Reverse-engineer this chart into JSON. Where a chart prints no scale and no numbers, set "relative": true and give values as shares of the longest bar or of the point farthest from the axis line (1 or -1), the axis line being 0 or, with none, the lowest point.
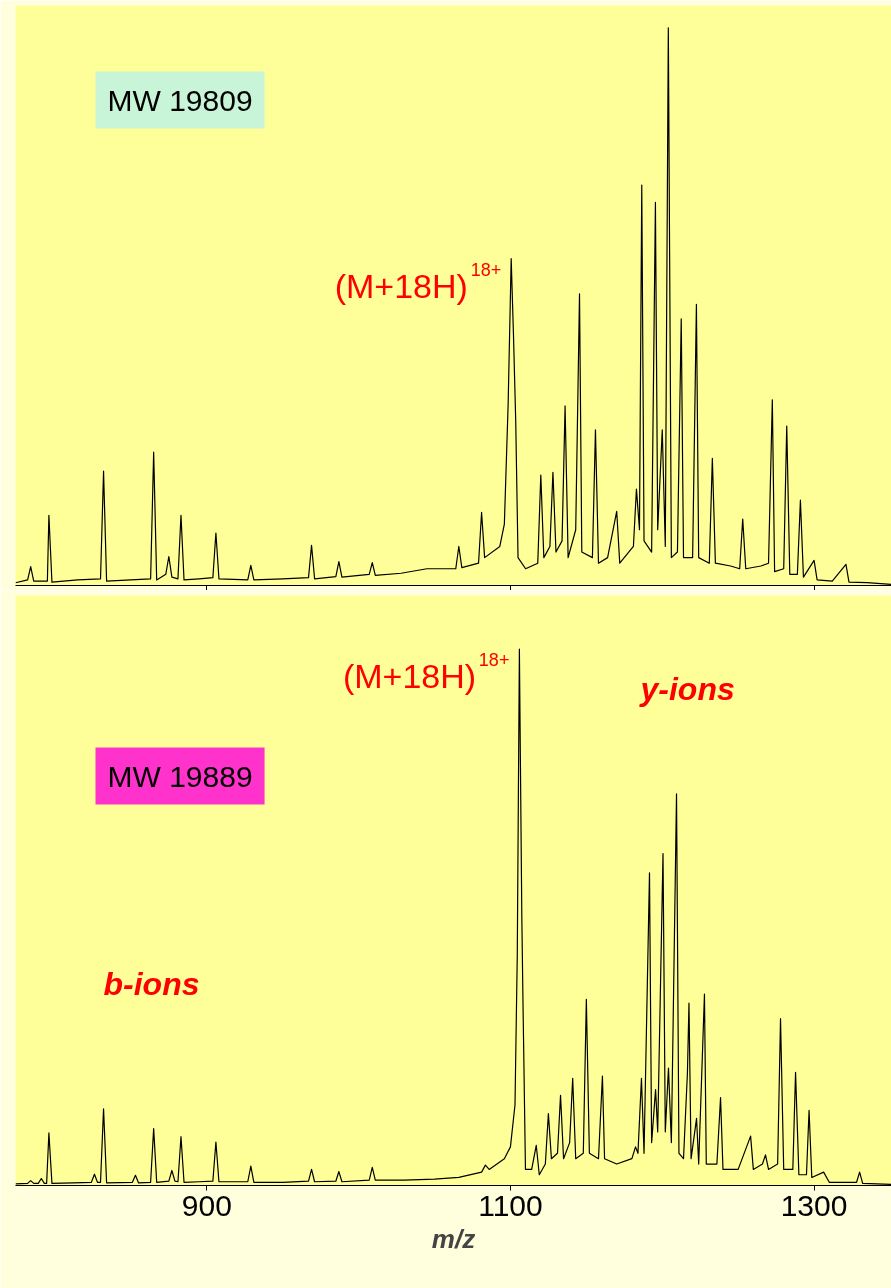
{
  "chart_data": [
    {
      "type": "line",
      "relative": true,
      "xlim": [
        774,
        1351
      ],
      "xticks": [
        900,
        1100,
        1300
      ],
      "tick_labels": false,
      "annotations": [
        "MW 19809",
        {
          "text": "(M+18H)$^{18+}$",
          "x": 1100.5,
          "y": 0.586
        }
      ],
      "series": [
        {
          "color": "#000000",
          "x": [
            774,
            782,
            784,
            786,
            795,
            796,
            798,
            815,
            830,
            832,
            834,
            850,
            863,
            865,
            867,
            873,
            875,
            877,
            881,
            883,
            885,
            895,
            904,
            906,
            908,
            927,
            929,
            931,
            950,
            967,
            969,
            971,
            985,
            987,
            989,
            1007,
            1009,
            1011,
            1028,
            1045,
            1064,
            1066,
            1068,
            1079,
            1081,
            1083,
            1093,
            1096,
            1098.5,
            1100.5,
            1102,
            1103.5,
            1105,
            1110,
            1118,
            1120,
            1122,
            1126,
            1128,
            1130,
            1134,
            1136,
            1138,
            1143,
            1145.5,
            1147,
            1154,
            1156,
            1158,
            1164,
            1170,
            1172,
            1181,
            1183,
            1185,
            1186.5,
            1188,
            1193,
            1195.5,
            1197,
            1200,
            1202,
            1204,
            1206,
            1210,
            1212.5,
            1214,
            1220,
            1222.5,
            1224,
            1231,
            1233,
            1235,
            1245,
            1251,
            1253,
            1255,
            1265,
            1270,
            1272.5,
            1274,
            1280,
            1282,
            1284,
            1289,
            1291,
            1293,
            1300,
            1302,
            1312,
            1321,
            1323,
            1335,
            1351
          ],
          "values": [
            0.005,
            0.01,
            0.034,
            0.008,
            0.008,
            0.126,
            0.006,
            0.01,
            0.012,
            0.205,
            0.008,
            0.01,
            0.012,
            0.239,
            0.01,
            0.02,
            0.052,
            0.015,
            0.012,
            0.126,
            0.01,
            0.012,
            0.014,
            0.094,
            0.012,
            0.01,
            0.036,
            0.01,
            0.012,
            0.014,
            0.072,
            0.012,
            0.016,
            0.043,
            0.015,
            0.02,
            0.041,
            0.018,
            0.022,
            0.03,
            0.03,
            0.07,
            0.032,
            0.04,
            0.131,
            0.05,
            0.07,
            0.11,
            0.326,
            0.586,
            0.45,
            0.293,
            0.05,
            0.03,
            0.04,
            0.198,
            0.05,
            0.07,
            0.203,
            0.06,
            0.08,
            0.322,
            0.05,
            0.1,
            0.523,
            0.06,
            0.05,
            0.279,
            0.04,
            0.05,
            0.133,
            0.04,
            0.07,
            0.173,
            0.1,
            0.718,
            0.08,
            0.06,
            0.687,
            0.1,
            0.279,
            0.07,
            1,
            0.05,
            0.06,
            0.478,
            0.05,
            0.05,
            0.504,
            0.05,
            0.04,
            0.228,
            0.04,
            0.035,
            0.03,
            0.119,
            0.03,
            0.035,
            0.04,
            0.333,
            0.025,
            0.03,
            0.286,
            0.02,
            0.02,
            0.153,
            0.015,
            0.045,
            0.01,
            0.008,
            0.038,
            0.006,
            0.005,
            0.002
          ]
        }
      ]
    },
    {
      "type": "line",
      "relative": true,
      "xlim": [
        774,
        1351
      ],
      "xticks": [
        900,
        1100,
        1300
      ],
      "tick_labels": "x",
      "xlabel": "m/z",
      "annotations": [
        "MW 19889",
        {
          "text": "(M+18H)$^{18+}$",
          "x": 1105.9,
          "y": 1
        },
        "y-ions",
        "b-ions"
      ],
      "series": [
        {
          "color": "#000000",
          "x": [
            774,
            782,
            784,
            786,
            789,
            791,
            793,
            794.5,
            796,
            798,
            812,
            824,
            826,
            828,
            830,
            832,
            834,
            851,
            853,
            855,
            863,
            865,
            867,
            875,
            877,
            879,
            881,
            883,
            885,
            895,
            904,
            906,
            908,
            927,
            929,
            931,
            950,
            967,
            969,
            971,
            985,
            987,
            989,
            1007,
            1009,
            1011,
            1030,
            1050,
            1066,
            1081,
            1083.5,
            1086,
            1096,
            1100,
            1103,
            1104.5,
            1105.9,
            1107.5,
            1108.2,
            1109.9,
            1114,
            1117,
            1119,
            1123,
            1125,
            1127,
            1131,
            1133,
            1135,
            1139,
            1141,
            1143,
            1148,
            1150,
            1152,
            1158,
            1160.6,
            1162,
            1170,
            1180,
            1182.4,
            1184,
            1186.3,
            1188,
            1191.6,
            1193,
            1195.6,
            1197,
            1200.5,
            1202,
            1204.1,
            1206,
            1209.4,
            1211,
            1214,
            1216.6,
            1217.6,
            1219,
            1222.6,
            1224,
            1227.8,
            1229,
            1236,
            1238.4,
            1240,
            1250,
            1258.2,
            1260,
            1266,
            1268,
            1270,
            1276,
            1277.9,
            1280,
            1286,
            1287.8,
            1290,
            1295,
            1296.7,
            1298.5,
            1306.3,
            1310,
            1328,
            1330,
            1332,
            1351
          ],
          "values": [
            0.003,
            0.004,
            0.009,
            0.004,
            0.004,
            0.013,
            0.004,
            0.004,
            0.098,
            0.004,
            0.005,
            0.006,
            0.021,
            0.006,
            0.006,
            0.143,
            0.005,
            0.006,
            0.019,
            0.005,
            0.006,
            0.106,
            0.006,
            0.008,
            0.028,
            0.008,
            0.007,
            0.091,
            0.006,
            0.007,
            0.008,
            0.081,
            0.007,
            0.007,
            0.036,
            0.006,
            0.006,
            0.008,
            0.03,
            0.007,
            0.008,
            0.026,
            0.007,
            0.01,
            0.034,
            0.01,
            0.01,
            0.012,
            0.015,
            0.025,
            0.038,
            0.03,
            0.05,
            0.072,
            0.15,
            0.428,
            1,
            0.5,
            0.355,
            0.03,
            0.03,
            0.075,
            0.02,
            0.04,
            0.134,
            0.05,
            0.06,
            0.168,
            0.05,
            0.08,
            0.2,
            0.05,
            0.06,
            0.347,
            0.06,
            0.05,
            0.204,
            0.05,
            0.04,
            0.05,
            0.072,
            0.06,
            0.2,
            0.06,
            0.583,
            0.08,
            0.179,
            0.1,
            0.619,
            0.1,
            0.219,
            0.08,
            0.73,
            0.06,
            0.05,
            0.211,
            0.34,
            0.05,
            0.125,
            0.04,
            0.357,
            0.04,
            0.04,
            0.164,
            0.03,
            0.03,
            0.092,
            0.03,
            0.04,
            0.057,
            0.03,
            0.04,
            0.311,
            0.03,
            0.03,
            0.211,
            0.02,
            0.02,
            0.14,
            0.015,
            0.025,
            0.006,
            0.006,
            0.025,
            0.004,
            0.002
          ]
        }
      ]
    }
  ]
}
